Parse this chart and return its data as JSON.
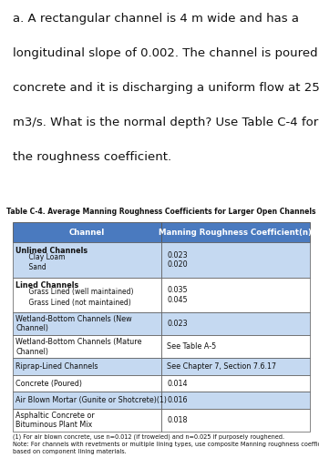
{
  "problem_text": "a. A rectangular channel is 4 m wide and has a\nlongitudinal slope of 0.002. The channel is poured\nconcrete and it is discharging a uniform flow at 25\nm3/s. What is the normal depth? Use Table C-4 for\nthe roughness coefficient.",
  "table_title": "Table C-4. Average Manning Roughness Coefficients for Larger Open Channels",
  "col_headers": [
    "Channel",
    "Manning Roughness Coefficient(n)"
  ],
  "rows": [
    [
      "Unlined Channels\n    Clay Loam\n    Sand",
      "0.023\n0.020"
    ],
    [
      "Lined Channels\n    Grass Lined (well maintained)\n    Grass Lined (not maintained)",
      "0.035\n0.045"
    ],
    [
      "Wetland-Bottom Channels (New\nChannel)",
      "0.023"
    ],
    [
      "Wetland-Bottom Channels (Mature\nChannel)",
      "See Table A-5"
    ],
    [
      "Riprap-Lined Channels",
      "See Chapter 7, Section 7.6.17"
    ],
    [
      "Concrete (Poured)",
      "0.014"
    ],
    [
      "Air Blown Mortar (Gunite or Shotcrete)(1)",
      "0.016"
    ],
    [
      "Asphaltic Concrete or\nBituminous Plant Mix",
      "0.018"
    ]
  ],
  "row_bold_first_line": [
    true,
    true,
    false,
    false,
    false,
    false,
    false,
    false
  ],
  "footnote": "(1) For air blown concrete, use n=0.012 (if troweled) and n=0.025 if purposely roughened.\nNote: For channels with revetments or multiple lining types, use composite Manning roughness coefficient\nbased on component lining materials.",
  "header_bg": "#4a7abf",
  "header_text_color": "#ffffff",
  "row_bg_even": "#c5d9f1",
  "row_bg_odd": "#ffffff",
  "border_color": "#555555",
  "text_color": "#111111",
  "col_split": 0.5
}
